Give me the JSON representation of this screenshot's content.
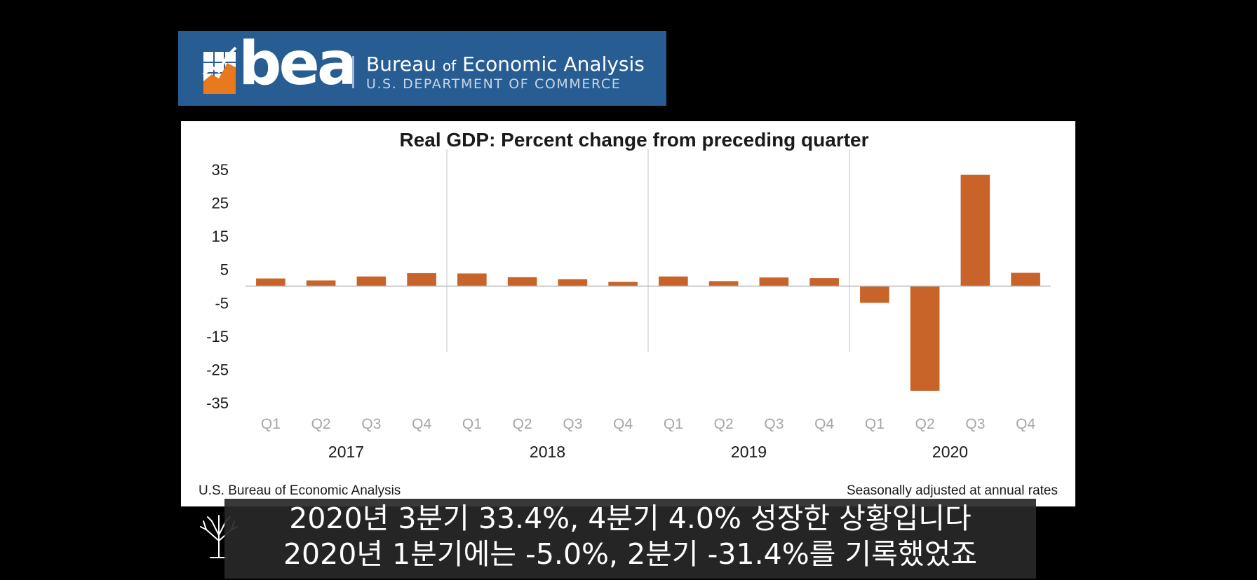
{
  "banner": {
    "wordmark": "bea",
    "name_part1": "Bureau ",
    "name_of": "of",
    "name_part2": " Economic Analysis",
    "department": "U.S. DEPARTMENT OF COMMERCE",
    "background_color": "#275d93"
  },
  "chart_data": {
    "type": "bar",
    "title": "Real GDP:  Percent change from preceding quarter",
    "categories": [
      "Q1",
      "Q2",
      "Q3",
      "Q4",
      "Q1",
      "Q2",
      "Q3",
      "Q4",
      "Q1",
      "Q2",
      "Q3",
      "Q4",
      "Q1",
      "Q2",
      "Q3",
      "Q4"
    ],
    "groups": [
      "2017",
      "2018",
      "2019",
      "2020"
    ],
    "values": [
      2.3,
      1.7,
      2.9,
      3.9,
      3.8,
      2.7,
      2.1,
      1.3,
      2.9,
      1.5,
      2.6,
      2.4,
      -5.0,
      -31.4,
      33.4,
      4.0
    ],
    "ylim": [
      -35,
      35
    ],
    "yticks": [
      35,
      25,
      15,
      5,
      -5,
      -15,
      -25,
      -35
    ],
    "bar_color": "#c8642a",
    "grid": false,
    "source_note": "U.S. Bureau of Economic Analysis",
    "rate_note": "Seasonally adjusted at annual rates"
  },
  "subtitles": {
    "line1": "2020년 3분기 33.4%, 4분기 4.0% 성장한 상황입니다",
    "line2": "2020년 1분기에는 -5.0%, 2분기 -31.4%를 기록했었죠"
  },
  "icons": {
    "logo": "bea-chart-logo-icon",
    "channel": "tree-icon"
  }
}
